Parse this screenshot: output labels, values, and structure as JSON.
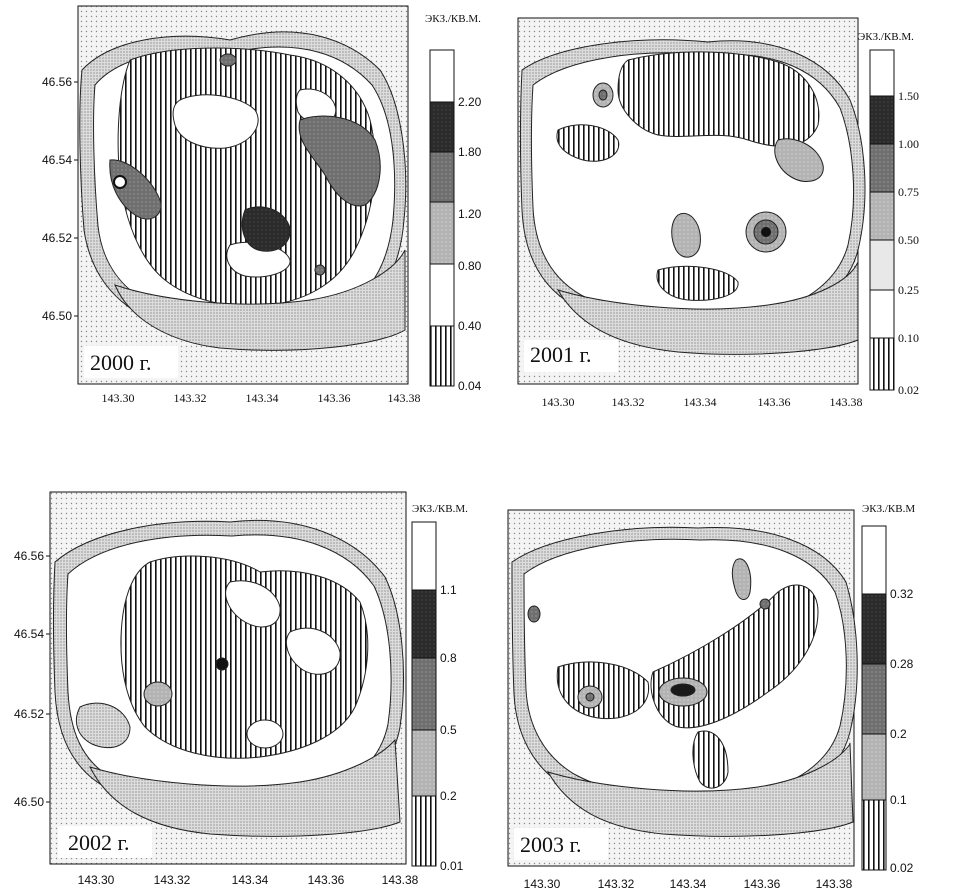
{
  "panels": [
    {
      "year_label": "2000 г.",
      "unit_label": "ЭКЗ./КВ.М.",
      "x_ticks": [
        "143.30",
        "143.32",
        "143.34",
        "143.36",
        "143.38"
      ],
      "y_ticks": [
        "46.56",
        "46.54",
        "46.52",
        "46.50"
      ],
      "legend_values": [
        "2.20",
        "1.80",
        "1.20",
        "0.80",
        "0.40",
        "0.04"
      ]
    },
    {
      "year_label": "2001 г.",
      "unit_label": "ЭКЗ./КВ.М.",
      "x_ticks": [
        "143.30",
        "143.32",
        "143.34",
        "143.36",
        "143.38"
      ],
      "y_ticks": [],
      "legend_values": [
        "1.50",
        "1.00",
        "0.75",
        "0.50",
        "0.25",
        "0.10",
        "0.02"
      ]
    },
    {
      "year_label": "2002 г.",
      "unit_label": "ЭКЗ./КВ.М.",
      "x_ticks": [
        "143.30",
        "143.32",
        "143.34",
        "143.36",
        "143.38"
      ],
      "y_ticks": [
        "46.56",
        "46.54",
        "46.52",
        "46.50"
      ],
      "legend_values": [
        "1.1",
        "0.8",
        "0.5",
        "0.2",
        "0.01"
      ]
    },
    {
      "year_label": "2003 г.",
      "unit_label": "ЭКЗ./КВ.М",
      "x_ticks": [
        "143.30",
        "143.32",
        "143.34",
        "143.36",
        "143.38"
      ],
      "y_ticks": [],
      "legend_values": [
        "0.32",
        "0.28",
        "0.2",
        "0.1",
        "0.02"
      ]
    }
  ],
  "colors": {
    "land_dots": "#cfcfcf",
    "shelf": "#e3e3e3",
    "high": "#2a2a2a",
    "mid": "#707070",
    "low": "#a9a9a9",
    "stripe": "#111111"
  }
}
